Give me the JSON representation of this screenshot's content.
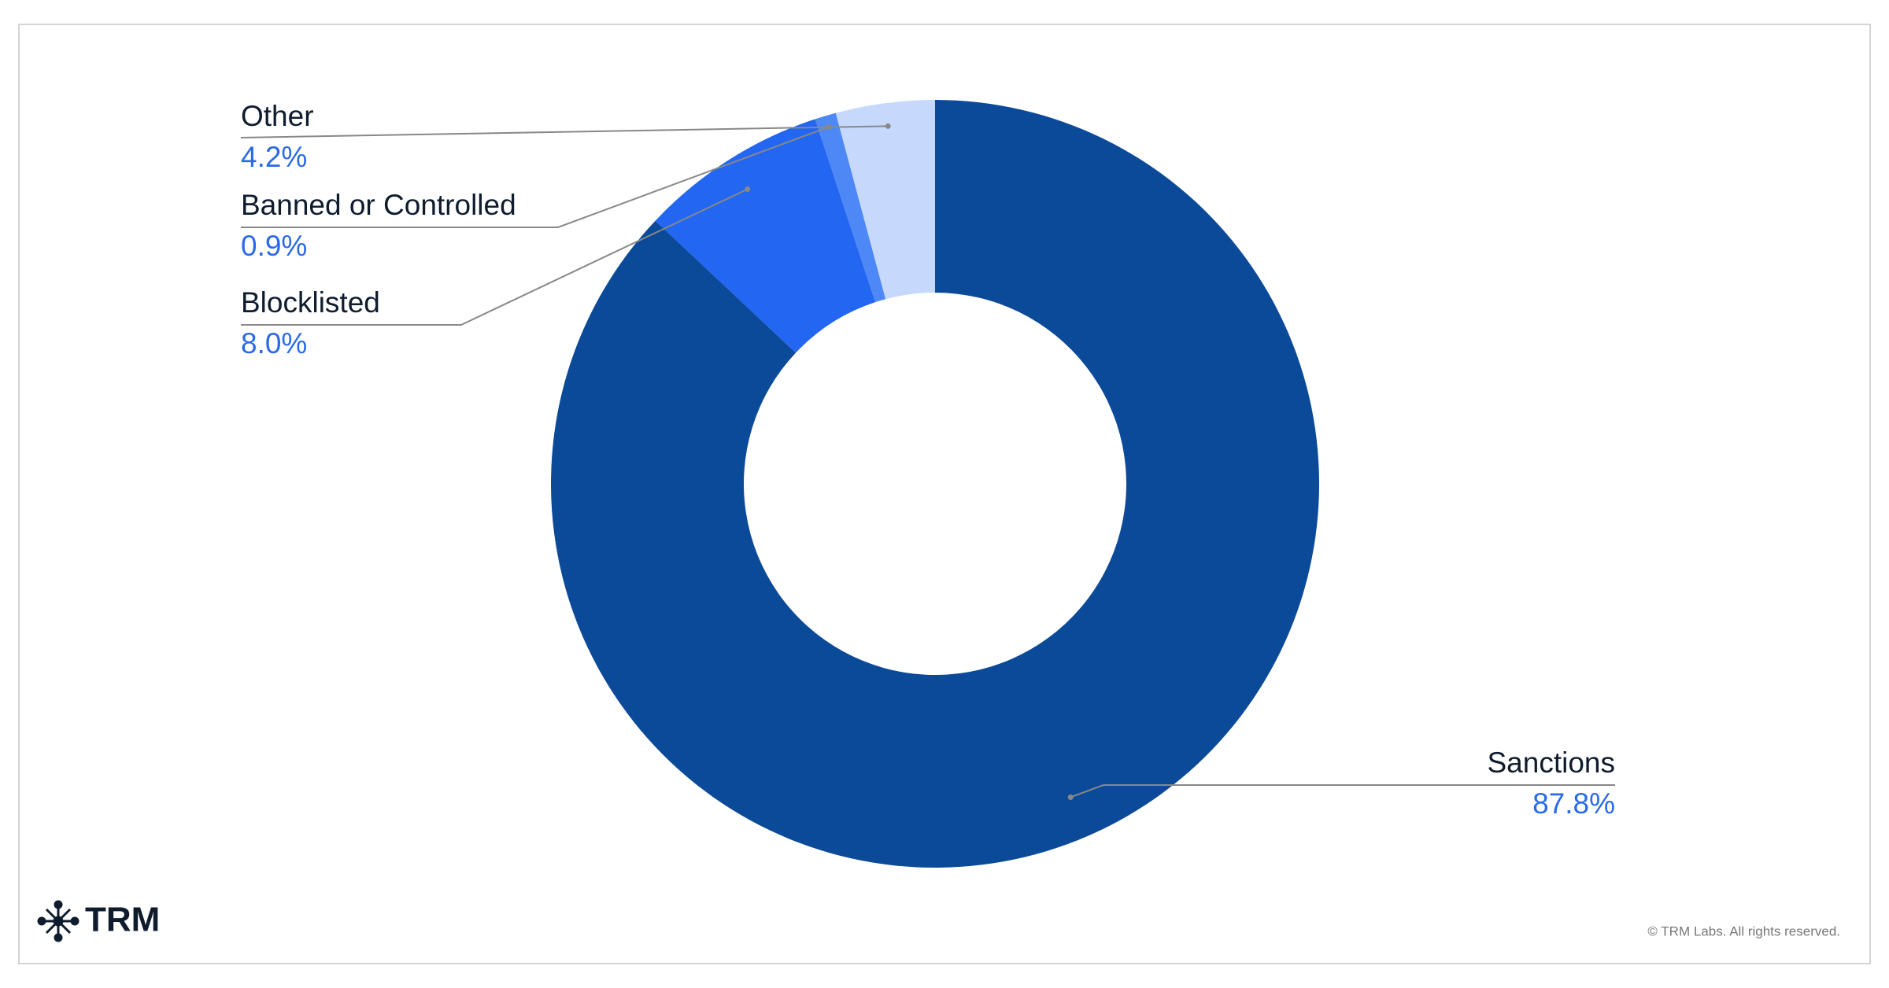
{
  "chart_data": {
    "type": "donut",
    "categories": [
      "Sanctions",
      "Blocklisted",
      "Banned or Controlled",
      "Other"
    ],
    "values": [
      87.8,
      8.0,
      0.9,
      4.2
    ],
    "value_labels": [
      "87.8%",
      "8.0%",
      "0.9%",
      "4.2%"
    ],
    "colors": [
      "#0b4a99",
      "#2266f2",
      "#4d88f6",
      "#c6d9fc"
    ]
  },
  "footer": {
    "logo": "TRM",
    "copyright": "© TRM Labs. All rights reserved."
  }
}
